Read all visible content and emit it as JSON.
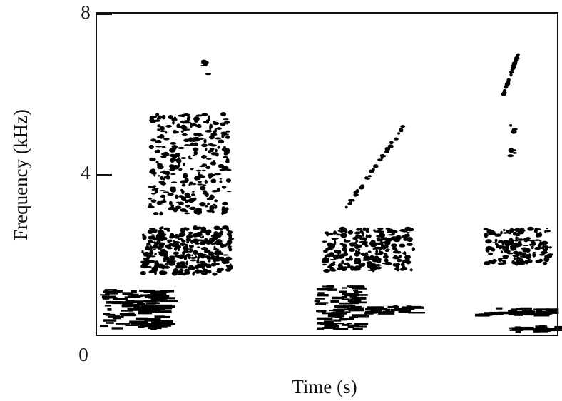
{
  "chart_data": {
    "type": "spectrogram",
    "x_label": "Time (s)",
    "y_label": "Frequency (kHz)",
    "xlim": [
      0,
      1
    ],
    "xticks": [
      0,
      1
    ],
    "ylim": [
      0,
      8
    ],
    "yticks": [
      4,
      8
    ],
    "color": "#000000"
  }
}
